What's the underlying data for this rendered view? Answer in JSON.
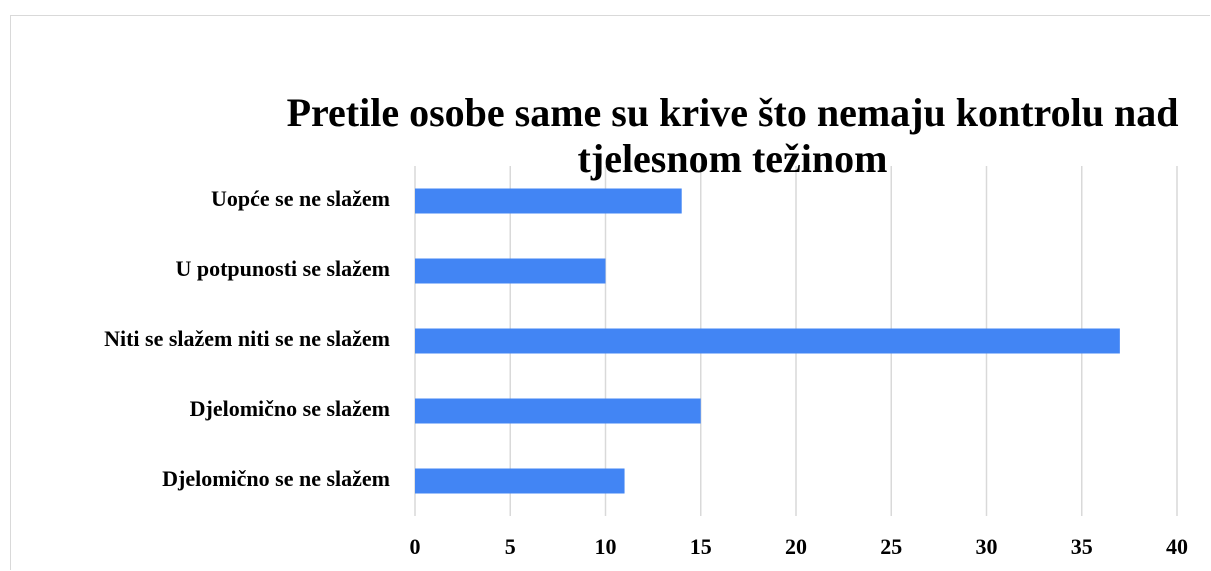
{
  "chart_data": {
    "type": "barh",
    "title": "Pretile osobe same su krive što nemaju kontrolu nad tjelesnom težinom",
    "categories": [
      "Uopće se ne slažem",
      "U potpunosti se slažem",
      "Niti se slažem niti se ne slažem",
      "Djelomično se slažem",
      "Djelomično se ne slažem"
    ],
    "values": [
      14,
      10,
      37,
      15,
      11
    ],
    "color": "#4285f4",
    "xlim": [
      0,
      40
    ],
    "xticks": [
      0,
      5,
      10,
      15,
      20,
      25,
      30,
      35,
      40
    ],
    "grid": true
  }
}
